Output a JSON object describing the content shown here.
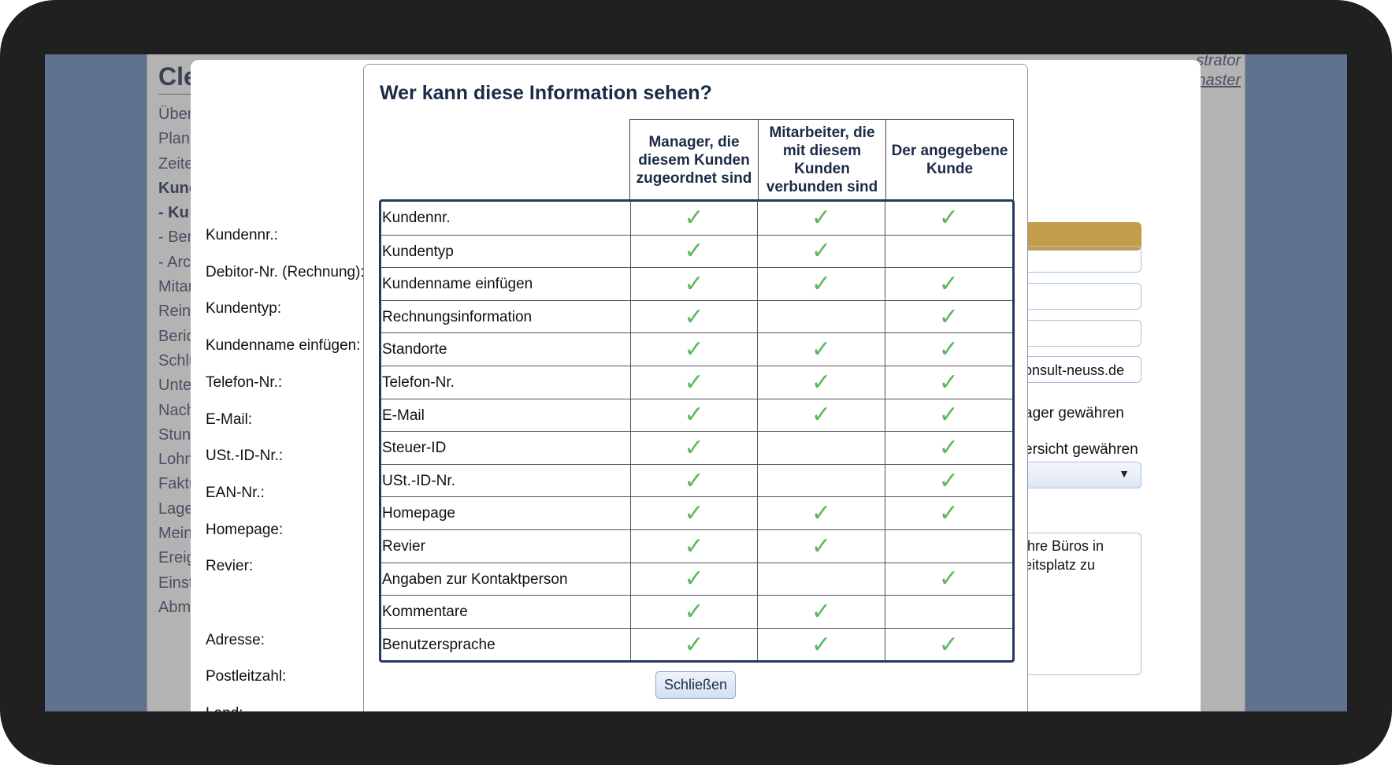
{
  "app": {
    "title": "Cle",
    "user_line1": "strator",
    "user_line2": "naster",
    "nav": [
      {
        "label": "Über",
        "bold": false
      },
      {
        "label": "Planu",
        "bold": false
      },
      {
        "label": "Zeite",
        "bold": false
      },
      {
        "label": "Kund",
        "bold": true
      },
      {
        "label": " - Ku",
        "bold": true
      },
      {
        "label": " - Ber",
        "bold": false
      },
      {
        "label": " - Arc",
        "bold": false
      },
      {
        "label": "Mitar",
        "bold": false
      },
      {
        "label": "Reini",
        "bold": false
      },
      {
        "label": "Beric",
        "bold": false
      },
      {
        "label": "Schlü",
        "bold": false
      },
      {
        "label": "Unte",
        "bold": false
      },
      {
        "label": "Nach",
        "bold": false
      },
      {
        "label": "Stun",
        "bold": false
      },
      {
        "label": "Lohn",
        "bold": false
      },
      {
        "label": "Faktu",
        "bold": false
      },
      {
        "label": "Lage",
        "bold": false
      },
      {
        "label": "Mein",
        "bold": false
      },
      {
        "label": "Ereig",
        "bold": false
      },
      {
        "label": "Einst",
        "bold": false
      },
      {
        "label": "Abme",
        "bold": false
      }
    ]
  },
  "form": {
    "labels": [
      "Kundennr.:",
      "Debitor-Nr. (Rechnung):",
      "Kundentyp:",
      "Kundenname einfügen:",
      "Telefon-Nr.:",
      "E-Mail:",
      "USt.-ID-Nr.:",
      "EAN-Nr.:",
      "Homepage:",
      "Revier:",
      "Adresse:",
      "Postleitzahl:",
      "Land:"
    ],
    "email_value": "onsult-neuss.de",
    "option1": "ager gewähren",
    "option2": "ersicht gewähren",
    "textarea_value": "ihre Büros in\neitsplatz zu",
    "accent_gold": "#c39d4a"
  },
  "dialog": {
    "title": "Wer kann diese Information sehen?",
    "columns": [
      "Manager, die diesem Kunden zugeordnet sind",
      "Mitarbeiter, die mit diesem Kunden verbunden sind",
      "Der angegebene Kunde"
    ],
    "check_icon": "✓",
    "check_color": "#5cb85c",
    "rows": [
      {
        "label": "Kundennr.",
        "visible": [
          true,
          true,
          true
        ]
      },
      {
        "label": "Kundentyp",
        "visible": [
          true,
          true,
          false
        ]
      },
      {
        "label": "Kundenname einfügen",
        "visible": [
          true,
          true,
          true
        ]
      },
      {
        "label": "Rechnungsinformation",
        "visible": [
          true,
          false,
          true
        ]
      },
      {
        "label": "Standorte",
        "visible": [
          true,
          true,
          true
        ]
      },
      {
        "label": "Telefon-Nr.",
        "visible": [
          true,
          true,
          true
        ]
      },
      {
        "label": "E-Mail",
        "visible": [
          true,
          true,
          true
        ]
      },
      {
        "label": "Steuer-ID",
        "visible": [
          true,
          false,
          true
        ]
      },
      {
        "label": "USt.-ID-Nr.",
        "visible": [
          true,
          false,
          true
        ]
      },
      {
        "label": "Homepage",
        "visible": [
          true,
          true,
          true
        ]
      },
      {
        "label": "Revier",
        "visible": [
          true,
          true,
          false
        ]
      },
      {
        "label": "Angaben zur Kontaktperson",
        "visible": [
          true,
          false,
          true
        ]
      },
      {
        "label": "Kommentare",
        "visible": [
          true,
          true,
          false
        ]
      },
      {
        "label": "Benutzersprache",
        "visible": [
          true,
          true,
          true
        ]
      }
    ],
    "close_label": "Schließen"
  }
}
